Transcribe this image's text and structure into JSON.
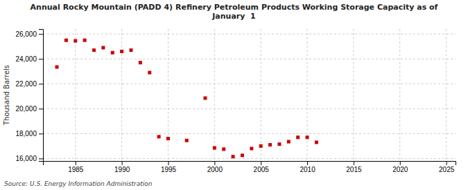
{
  "chart_data": {
    "type": "scatter",
    "title": "Annual Rocky Mountain (PADD 4) Refinery Petroleum Products Working Storage Capacity as of\nJanuary  1",
    "y_label": "Thousand Barrels",
    "annotations": [
      "Source: U.S. Energy Information Administration"
    ],
    "color": "#cc0000",
    "marker": "square",
    "grid": true,
    "xlim": [
      1981.5,
      2026
    ],
    "ylim": [
      15800,
      26400
    ],
    "xticks": [
      1985,
      1990,
      1995,
      2000,
      2005,
      2010,
      2015,
      2020,
      2025
    ],
    "yticks": [
      {
        "value": 16000,
        "label": "16,000"
      },
      {
        "value": 18000,
        "label": "18,000"
      },
      {
        "value": 20000,
        "label": "20,000"
      },
      {
        "value": 22000,
        "label": "22,000"
      },
      {
        "value": 24000,
        "label": "24,000"
      },
      {
        "value": 26000,
        "label": "26,000"
      }
    ],
    "x": [
      1983,
      1984,
      1985,
      1986,
      1987,
      1988,
      1989,
      1990,
      1991,
      1992,
      1993,
      1994,
      1995,
      1997,
      1999,
      2000,
      2001,
      2002,
      2003,
      2004,
      2005,
      2006,
      2007,
      2008,
      2009,
      2010,
      2011
    ],
    "values": [
      23350,
      25500,
      25450,
      25500,
      24700,
      24900,
      24500,
      24600,
      24700,
      23700,
      22900,
      17750,
      17600,
      17450,
      20850,
      16850,
      16750,
      16150,
      16250,
      16800,
      17000,
      17100,
      17150,
      17350,
      17700,
      17700,
      17300
    ]
  }
}
